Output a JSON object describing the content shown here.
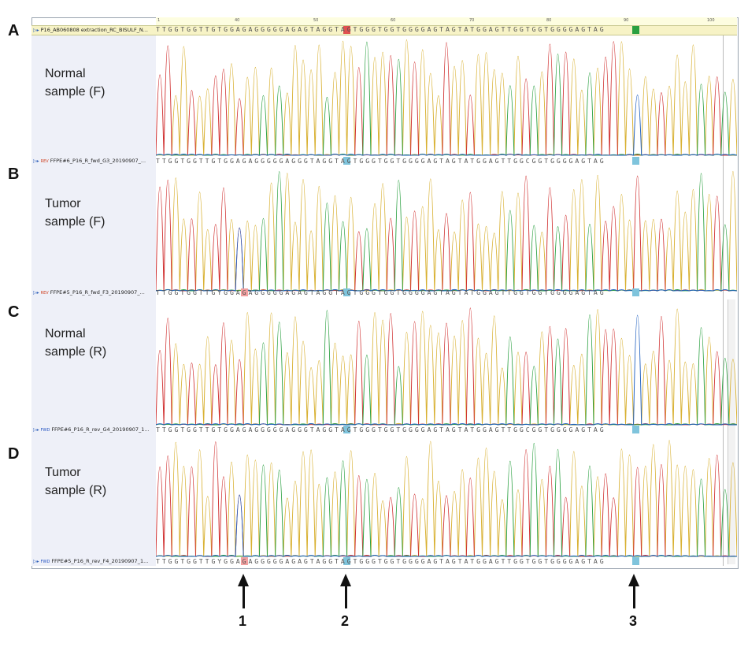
{
  "panels": [
    {
      "letter": "A",
      "sample_line1": "Normal",
      "sample_line2": "sample (F)"
    },
    {
      "letter": "B",
      "sample_line1": "Tumor",
      "sample_line2": "sample (F)"
    },
    {
      "letter": "C",
      "sample_line1": "Normal",
      "sample_line2": "sample (R)"
    },
    {
      "letter": "D",
      "sample_line1": "Tumor",
      "sample_line2": "sample (R)"
    }
  ],
  "ruler": {
    "ticks": [
      "1",
      "40",
      "50",
      "60",
      "70",
      "80",
      "90",
      "100"
    ]
  },
  "reference": {
    "name": "P16_AB060808 extraction_RC_BISULF_N...",
    "icon": "track-icon"
  },
  "tracks": [
    {
      "name": "FFPE#6_P16_R_fwd_G3_20190907_...",
      "dir": "REV",
      "seq": "TTGGTGGTTGTGGAGAGGGGGAGGGTAGGTAGTGGGTGGTGGGGAGTAGTATGGAGTTGGCGGTGGGGAGTAG"
    },
    {
      "name": "FFPE#5_P16_R_fwd_F3_20190907_...",
      "dir": "REV",
      "seq": "TTGGTGGTTGYGGAGAGGGGGAGAGTAGGTAGTGGGTGGTGGGGAGTAGTATGGAGTTGGTGGTGGGGAGTAG"
    },
    {
      "name": "FFPE#6_P16_R_rev_G4_20190907_1...",
      "dir": "FWD",
      "seq": "TTGGTGGTTGTGGAGAGGGGGAGGGTAGGTAGTGGGTGGTGGGGAGTAGTATGGAGTTGGCGGTGGGGAGTAG"
    },
    {
      "name": "FFPE#5_P16_R_rev_F4_20190907_1...",
      "dir": "FWD",
      "seq": "TTGGTGGTTGYGGAGAGGGGGAGAGTAGGTAGTGGGTGGTGGGGAGTAGTATGGAGTTGGTGGTGGGGAGTAG"
    }
  ],
  "reference_seq": "TTGGTGGTTGTGGAGAGGGGGAGAGTAGGTAGTGGGTGGTGGGGAGTAGTATGGAGTTGGTGGTGGGGAGTAG",
  "arrows": [
    {
      "label": "1"
    },
    {
      "label": "2"
    },
    {
      "label": "3"
    }
  ],
  "colors": {
    "A": "#2aa040",
    "C": "#2060c0",
    "G": "#d8b030",
    "T": "#d03030"
  }
}
